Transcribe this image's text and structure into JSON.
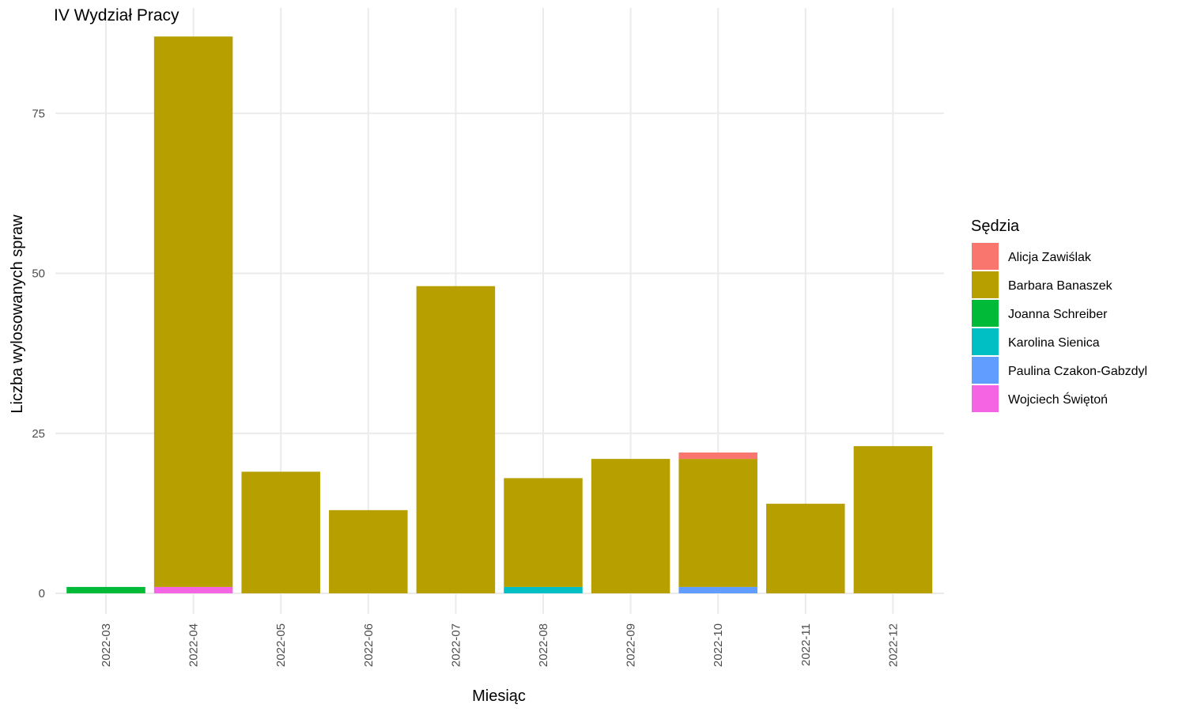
{
  "chart_data": {
    "type": "bar",
    "stacked": true,
    "title": "IV Wydział Pracy",
    "xlabel": "Miesiąc",
    "ylabel": "Liczba wylosowanych spraw",
    "ylim": [
      0,
      87
    ],
    "yticks": [
      0,
      25,
      50,
      75
    ],
    "ytick_labels": [
      "0",
      "25",
      "50",
      "75"
    ],
    "grid": true,
    "legend_position": "right",
    "legend_title": "Sędzia",
    "categories": [
      "2022-03",
      "2022-04",
      "2022-05",
      "2022-06",
      "2022-07",
      "2022-08",
      "2022-09",
      "2022-10",
      "2022-11",
      "2022-12"
    ],
    "series": [
      {
        "name": "Alicja Zawiślak",
        "color": "#F8766D",
        "values": [
          0,
          0,
          0,
          0,
          0,
          0,
          0,
          1,
          0,
          0
        ]
      },
      {
        "name": "Barbara Banaszek",
        "color": "#B79F00",
        "values": [
          0,
          86,
          19,
          13,
          48,
          17,
          21,
          20,
          14,
          23
        ]
      },
      {
        "name": "Joanna Schreiber",
        "color": "#00BA38",
        "values": [
          1,
          0,
          0,
          0,
          0,
          0,
          0,
          0,
          0,
          0
        ]
      },
      {
        "name": "Karolina Sienica",
        "color": "#00BFC4",
        "values": [
          0,
          0,
          0,
          0,
          0,
          1,
          0,
          0,
          0,
          0
        ]
      },
      {
        "name": "Paulina Czakon-Gabzdyl",
        "color": "#619CFF",
        "values": [
          0,
          0,
          0,
          0,
          0,
          0,
          0,
          1,
          0,
          0
        ]
      },
      {
        "name": "Wojciech Świętoń",
        "color": "#F564E3",
        "values": [
          0,
          1,
          0,
          0,
          0,
          0,
          0,
          0,
          0,
          0
        ]
      }
    ]
  }
}
